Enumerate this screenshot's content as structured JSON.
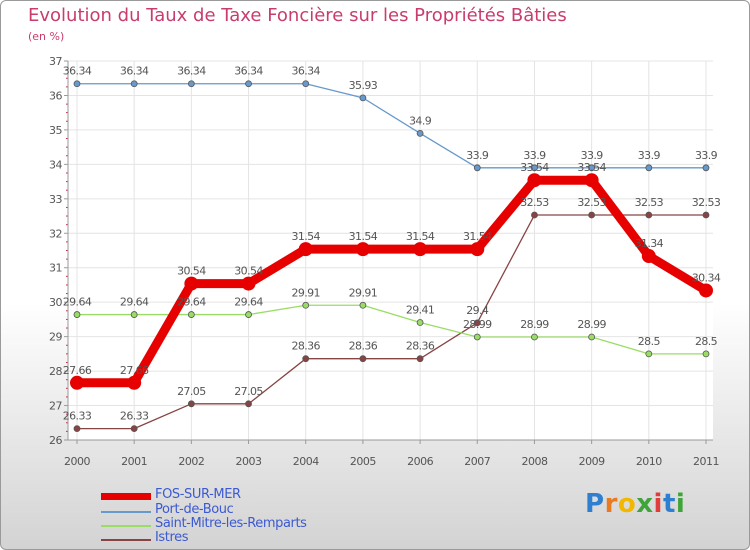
{
  "chart_data": {
    "type": "line",
    "title": "Evolution du Taux de Taxe Foncière sur les Propriétés Bâties",
    "ylabel": "(en %)",
    "xlabel": "",
    "ylim": [
      26,
      37
    ],
    "yticks": [
      "26",
      "27",
      "28",
      "29",
      "30",
      "31",
      "32",
      "33",
      "34",
      "35",
      "36",
      "37"
    ],
    "categories": [
      "2000",
      "2001",
      "2002",
      "2003",
      "2004",
      "2005",
      "2006",
      "2007",
      "2008",
      "2009",
      "2010",
      "2011"
    ],
    "series": [
      {
        "name": "FOS-SUR-MER",
        "color": "#e60000",
        "values": [
          27.66,
          27.66,
          30.54,
          30.54,
          31.54,
          31.54,
          31.54,
          31.54,
          33.54,
          33.54,
          31.34,
          30.34
        ],
        "labels": [
          "27.66",
          "27.66",
          "30.54",
          "30.54",
          "31.54",
          "31.54",
          "31.54",
          "31.54",
          "33.54",
          "33.54",
          "31.34",
          "30.34"
        ]
      },
      {
        "name": "Port-de-Bouc",
        "color": "#6699cc",
        "values": [
          36.34,
          36.34,
          36.34,
          36.34,
          36.34,
          35.93,
          34.9,
          33.9,
          33.9,
          33.9,
          33.9,
          33.9
        ],
        "labels": [
          "36.34",
          "36.34",
          "36.34",
          "36.34",
          "36.34",
          "35.93",
          "34.9",
          "33.9",
          "33.9",
          "33.9",
          "33.9",
          "33.9"
        ]
      },
      {
        "name": "Saint-Mitre-les-Remparts",
        "color": "#99dd66",
        "values": [
          29.64,
          29.64,
          29.64,
          29.64,
          29.91,
          29.91,
          29.41,
          28.99,
          28.99,
          28.99,
          28.5,
          28.5
        ],
        "labels": [
          "29.64",
          "29.64",
          "29.64",
          "29.64",
          "29.91",
          "29.91",
          "29.41",
          "28.99",
          "28.99",
          "28.99",
          "28.5",
          "28.5"
        ]
      },
      {
        "name": "Istres",
        "color": "#884444",
        "values": [
          26.33,
          26.33,
          27.05,
          27.05,
          28.36,
          28.36,
          28.36,
          29.4,
          32.53,
          32.53,
          32.53,
          32.53
        ],
        "labels": [
          "26.33",
          "26.33",
          "27.05",
          "27.05",
          "28.36",
          "28.36",
          "28.36",
          "29.4",
          "32.53",
          "32.53",
          "32.53",
          "32.53"
        ]
      }
    ]
  },
  "legend": {
    "items": [
      "FOS-SUR-MER",
      "Port-de-Bouc",
      "Saint-Mitre-les-Remparts",
      "Istres"
    ]
  },
  "logo": {
    "letters": [
      "P",
      "r",
      "o",
      "x",
      "i",
      "t",
      "i"
    ],
    "colors": [
      "#2f7fd0",
      "#e87a20",
      "#f2b800",
      "#3fa53a",
      "#e03c3c",
      "#2f7fd0",
      "#3fa53a"
    ]
  }
}
